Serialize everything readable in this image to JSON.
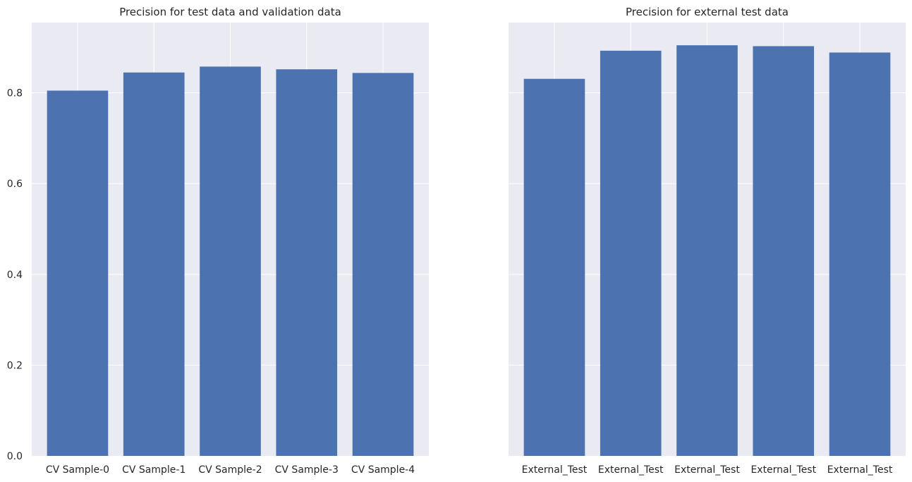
{
  "colors": {
    "bar": "#4c72b0",
    "plot_background": "#eaeaf2",
    "grid": "#ffffff",
    "text": "#262626"
  },
  "chart_data": [
    {
      "type": "bar",
      "title": "Precision for test data and validation data",
      "categories": [
        "CV Sample-0",
        "CV Sample-1",
        "CV Sample-2",
        "CV Sample-3",
        "CV Sample-4"
      ],
      "values": [
        0.805,
        0.845,
        0.858,
        0.852,
        0.844
      ],
      "xlabel": "",
      "ylabel": "",
      "ylim": [
        0,
        0.955
      ],
      "yticks": [
        "0.0",
        "0.2",
        "0.4",
        "0.6",
        "0.8"
      ],
      "grid": true,
      "shared_y": true
    },
    {
      "type": "bar",
      "title": "Precision for external test data",
      "categories": [
        "External_Test",
        "External_Test",
        "External_Test",
        "External_Test",
        "External_Test"
      ],
      "values": [
        0.831,
        0.893,
        0.905,
        0.903,
        0.889
      ],
      "xlabel": "",
      "ylabel": "",
      "ylim": [
        0,
        0.955
      ],
      "grid": true,
      "shared_y": true
    }
  ]
}
